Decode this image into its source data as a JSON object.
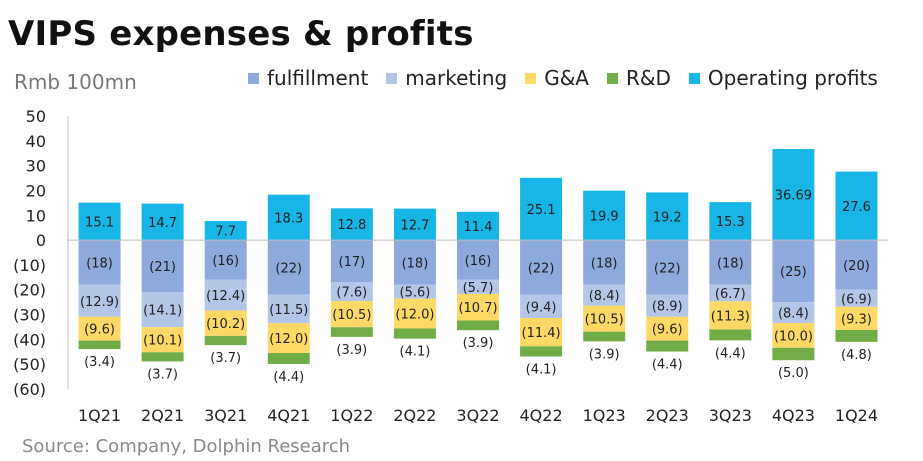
{
  "title": "VIPS expenses & profits",
  "unit": "Rmb 100mn",
  "source": "Source: Company, Dolphin Research",
  "colors": {
    "fulfillment": "#8EA9DB",
    "marketing": "#B4C6E7",
    "ga": "#FFD966",
    "rd": "#70AD47",
    "op": "#17B6E6",
    "axis": "#bfbfbf"
  },
  "chart_data": {
    "type": "bar",
    "stacked": true,
    "categories": [
      "1Q21",
      "2Q21",
      "3Q21",
      "4Q21",
      "1Q22",
      "2Q22",
      "3Q22",
      "4Q22",
      "1Q23",
      "2Q23",
      "3Q23",
      "4Q23",
      "1Q24"
    ],
    "series": [
      {
        "name": "fulfillment",
        "values": [
          -18,
          -21,
          -16,
          -22,
          -17,
          -18,
          -16,
          -22,
          -18,
          -22,
          -18,
          -25,
          -20
        ],
        "labels": [
          "(18)",
          "(21)",
          "(16)",
          "(22)",
          "(17)",
          "(18)",
          "(16)",
          "(22)",
          "(18)",
          "(22)",
          "(18)",
          "(25)",
          "(20)"
        ]
      },
      {
        "name": "marketing",
        "values": [
          -12.9,
          -14.1,
          -12.4,
          -11.5,
          -7.6,
          -5.6,
          -5.7,
          -9.4,
          -8.4,
          -8.9,
          -6.7,
          -8.4,
          -6.9
        ],
        "labels": [
          "(12.9)",
          "(14.1)",
          "(12.4)",
          "(11.5)",
          "(7.6)",
          "(5.6)",
          "(5.7)",
          "(9.4)",
          "(8.4)",
          "(8.9)",
          "(6.7)",
          "(8.4)",
          "(6.9)"
        ]
      },
      {
        "name": "G&A",
        "values": [
          -9.6,
          -10.1,
          -10.2,
          -12.0,
          -10.5,
          -12.0,
          -10.7,
          -11.4,
          -10.5,
          -9.6,
          -11.3,
          -10.0,
          -9.3
        ],
        "labels": [
          "(9.6)",
          "(10.1)",
          "(10.2)",
          "(12.0)",
          "(10.5)",
          "(12.0)",
          "(10.7)",
          "(11.4)",
          "(10.5)",
          "(9.6)",
          "(11.3)",
          "(10.0)",
          "(9.3)"
        ]
      },
      {
        "name": "R&D",
        "values": [
          -3.4,
          -3.7,
          -3.7,
          -4.4,
          -3.9,
          -4.1,
          -3.9,
          -4.1,
          -3.9,
          -4.4,
          -4.4,
          -5.0,
          -4.8
        ],
        "labels": [
          "(3.4)",
          "(3.7)",
          "(3.7)",
          "(4.4)",
          "(3.9)",
          "(4.1)",
          "(3.9)",
          "(4.1)",
          "(3.9)",
          "(4.4)",
          "(4.4)",
          "(5.0)",
          "(4.8)"
        ]
      },
      {
        "name": "Operating profits",
        "values": [
          15.1,
          14.7,
          7.7,
          18.3,
          12.8,
          12.7,
          11.4,
          25.1,
          19.9,
          19.2,
          15.3,
          36.69,
          27.6
        ],
        "labels": [
          "15.1",
          "14.7",
          "7.7",
          "18.3",
          "12.8",
          "12.7",
          "11.4",
          "25.1",
          "19.9",
          "19.2",
          "15.3",
          "36.69",
          "27.6"
        ]
      }
    ],
    "ylim": [
      -60,
      50
    ],
    "yticks": [
      50,
      40,
      30,
      20,
      10,
      0,
      -10,
      -20,
      -30,
      -40,
      -50,
      -60
    ],
    "ytick_labels": [
      "50",
      "40",
      "30",
      "20",
      "10",
      "0",
      "(10)",
      "(20)",
      "(30)",
      "(40)",
      "(50)",
      "(60)"
    ],
    "grid": false,
    "legend_position": "top"
  }
}
